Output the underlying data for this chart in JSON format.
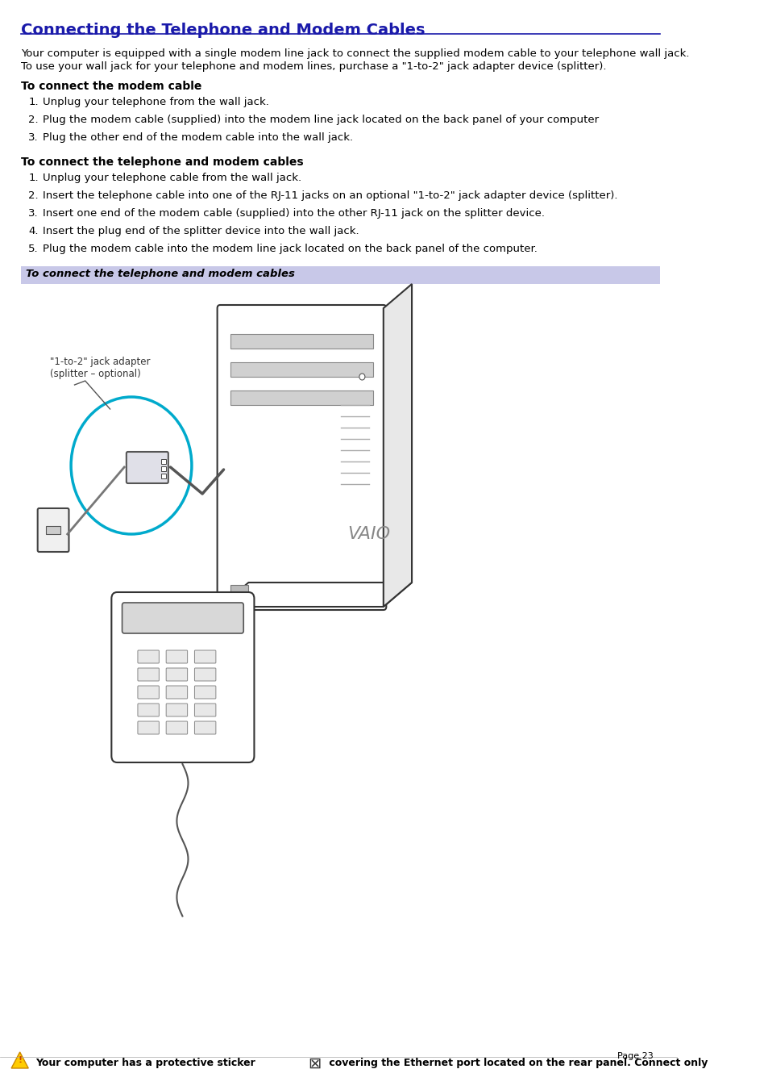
{
  "title": "Connecting the Telephone and Modem Cables",
  "title_color": "#1a1aaa",
  "title_underline_color": "#1a1aaa",
  "bg_color": "#ffffff",
  "body_text_color": "#000000",
  "intro_text": "Your computer is equipped with a single modem line jack to connect the supplied modem cable to your telephone wall jack.\nTo use your wall jack for your telephone and modem lines, purchase a \"1-to-2\" jack adapter device (splitter).",
  "section1_heading": "To connect the modem cable",
  "section1_items": [
    "Unplug your telephone from the wall jack.",
    "Plug the modem cable (supplied) into the modem line jack located on the back panel of your computer",
    "Plug the other end of the modem cable into the wall jack."
  ],
  "section2_heading": "To connect the telephone and modem cables",
  "section2_items": [
    "Unplug your telephone cable from the wall jack.",
    "Insert the telephone cable into one of the RJ-11 jacks on an optional \"1-to-2\" jack adapter device (splitter).",
    "Insert one end of the modem cable (supplied) into the other RJ-11 jack on the splitter device.",
    "Insert the plug end of the splitter device into the wall jack.",
    "Plug the modem cable into the modem line jack located on the back panel of the computer."
  ],
  "caption_bar_text": "To connect the telephone and modem cables",
  "caption_bar_bg": "#c8c8e8",
  "caption_bar_text_color": "#000000",
  "footer_text": "    Your computer has a protective sticker     covering the Ethernet port located on the rear panel. Connect only",
  "footer_page": "Page 23",
  "footer_color": "#000000",
  "image_label": "\"1-to-2\" jack adapter\n(splitter – optional)"
}
